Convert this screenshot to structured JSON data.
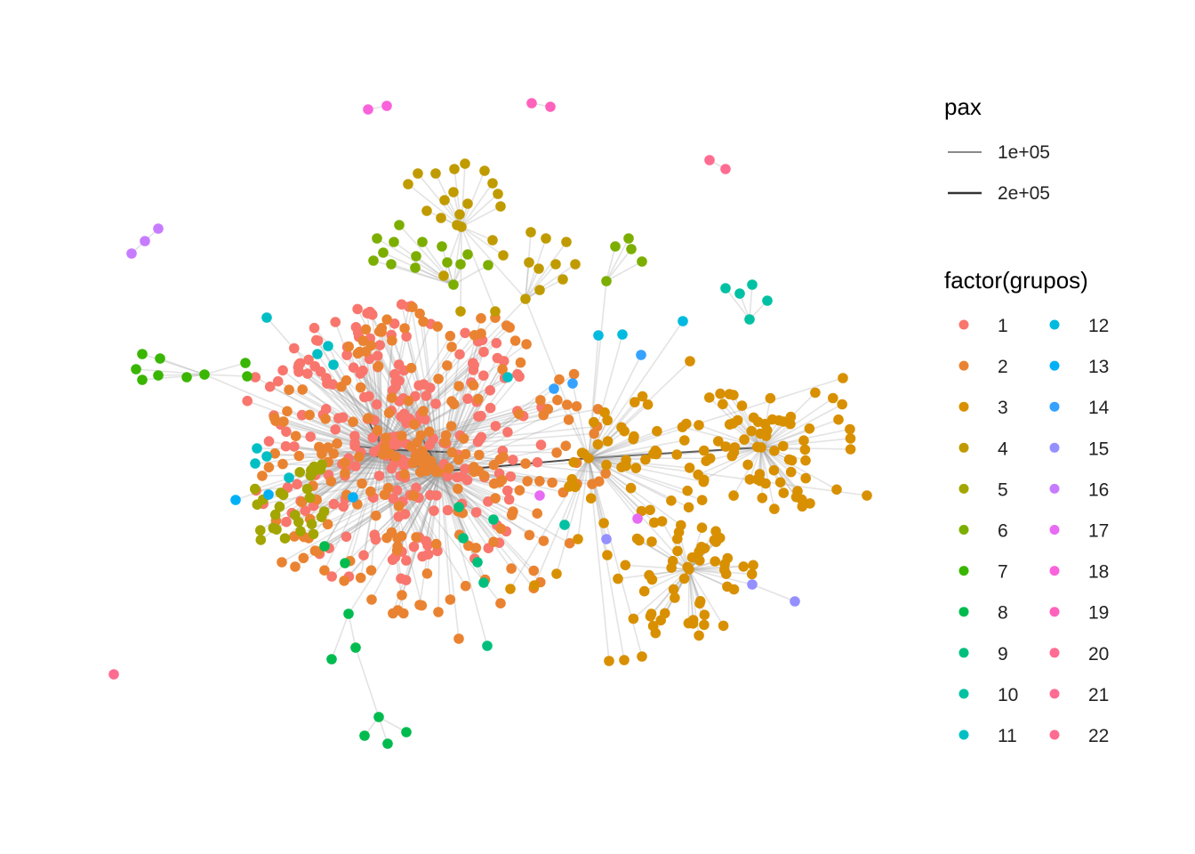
{
  "legend": {
    "edge_title": "pax",
    "edge_entries": [
      {
        "label": "1e+05",
        "color": "#8a8a8a"
      },
      {
        "label": "2e+05",
        "color": "#333333"
      }
    ],
    "group_title": "factor(grupos)",
    "groups": [
      {
        "label": "1",
        "color": "#F8766D"
      },
      {
        "label": "2",
        "color": "#EA8331"
      },
      {
        "label": "3",
        "color": "#D89000"
      },
      {
        "label": "4",
        "color": "#C09B00"
      },
      {
        "label": "5",
        "color": "#A3A500"
      },
      {
        "label": "6",
        "color": "#7CAE00"
      },
      {
        "label": "7",
        "color": "#39B600"
      },
      {
        "label": "8",
        "color": "#00BB4E"
      },
      {
        "label": "9",
        "color": "#00BF7D"
      },
      {
        "label": "10",
        "color": "#00C1A3"
      },
      {
        "label": "11",
        "color": "#00BFC4"
      },
      {
        "label": "12",
        "color": "#00BAE0"
      },
      {
        "label": "13",
        "color": "#00B0F6"
      },
      {
        "label": "14",
        "color": "#35A2FF"
      },
      {
        "label": "15",
        "color": "#9590FF"
      },
      {
        "label": "16",
        "color": "#C77CFF"
      },
      {
        "label": "17",
        "color": "#E76BF3"
      },
      {
        "label": "18",
        "color": "#FA62DB"
      },
      {
        "label": "19",
        "color": "#FF62BC"
      },
      {
        "label": "20",
        "color": "#FF6C91"
      },
      {
        "label": "21",
        "color": "#FF6C91"
      },
      {
        "label": "22",
        "color": "#FF6C91"
      }
    ]
  },
  "network": {
    "edge_color": "#999999",
    "heavy_edge_color": "#222222"
  }
}
